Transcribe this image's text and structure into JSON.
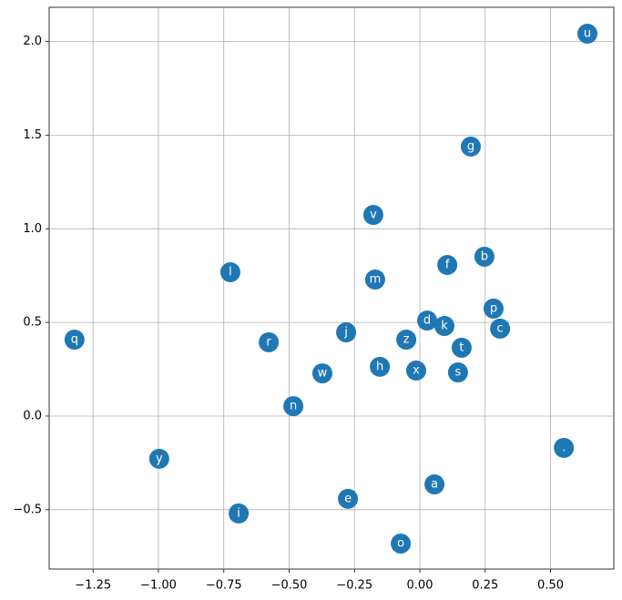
{
  "chart_data": {
    "type": "scatter",
    "color": "#1f77b4",
    "grid": true,
    "labels": [
      "u",
      "g",
      "v",
      "b",
      "f",
      "l",
      "m",
      "p",
      "d",
      "k",
      "c",
      "j",
      "z",
      "q",
      "r",
      "t",
      "h",
      "x",
      "s",
      "w",
      "n",
      ".",
      "y",
      "a",
      "e",
      "i",
      "o"
    ],
    "x": [
      0.641,
      0.195,
      -0.178,
      0.247,
      0.105,
      -0.725,
      -0.171,
      0.282,
      0.028,
      0.094,
      0.307,
      -0.282,
      -0.052,
      -1.321,
      -0.578,
      0.16,
      -0.153,
      -0.014,
      0.146,
      -0.373,
      -0.484,
      0.551,
      -0.997,
      0.056,
      -0.275,
      -0.693,
      -0.073
    ],
    "values": [
      2.042,
      1.439,
      1.074,
      0.851,
      0.807,
      0.768,
      0.729,
      0.574,
      0.51,
      0.481,
      0.467,
      0.447,
      0.408,
      0.408,
      0.394,
      0.365,
      0.263,
      0.243,
      0.233,
      0.228,
      0.053,
      -0.17,
      -0.228,
      -0.365,
      -0.442,
      -0.52,
      -0.681
    ],
    "xlim": [
      -1.418,
      0.742
    ],
    "ylim": [
      -0.817,
      2.183
    ],
    "xticks": [
      {
        "value": -1.25,
        "label": "−1.25"
      },
      {
        "value": -1.0,
        "label": "−1.00"
      },
      {
        "value": -0.75,
        "label": "−0.75"
      },
      {
        "value": -0.5,
        "label": "−0.50"
      },
      {
        "value": -0.25,
        "label": "−0.25"
      },
      {
        "value": 0,
        "label": "0.00"
      },
      {
        "value": 0.25,
        "label": "0.25"
      },
      {
        "value": 0.5,
        "label": "0.50"
      }
    ],
    "yticks": [
      {
        "value": -0.5,
        "label": "−0.5"
      },
      {
        "value": 0,
        "label": "0.0"
      },
      {
        "value": 0.5,
        "label": "0.5"
      },
      {
        "value": 1.0,
        "label": "1.0"
      },
      {
        "value": 1.5,
        "label": "1.5"
      },
      {
        "value": 2.0,
        "label": "2.0"
      }
    ]
  }
}
